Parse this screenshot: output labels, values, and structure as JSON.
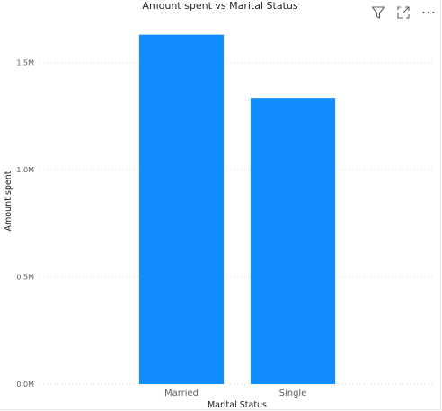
{
  "visual": {
    "title": "Amount spent vs Marital Status",
    "icons": [
      "filter-icon",
      "focus-mode-icon",
      "more-options-icon"
    ]
  },
  "colors": {
    "bar": "#118DFF",
    "gridline": "#d9d9d9",
    "axis_text": "#605E5C",
    "title_text": "#252423"
  },
  "chart_data": {
    "type": "bar",
    "title": "Amount spent vs Marital Status",
    "xlabel": "Marital Status",
    "ylabel": "Amount spent",
    "categories": [
      "Married",
      "Single"
    ],
    "values": [
      1630000,
      1335000
    ],
    "ylim": [
      0,
      1750000
    ],
    "yticks": [
      0,
      500000,
      1000000,
      1500000
    ],
    "ytick_labels": [
      "0.0M",
      "0.5M",
      "1.0M",
      "1.5M"
    ],
    "grid": true,
    "legend": "none"
  }
}
